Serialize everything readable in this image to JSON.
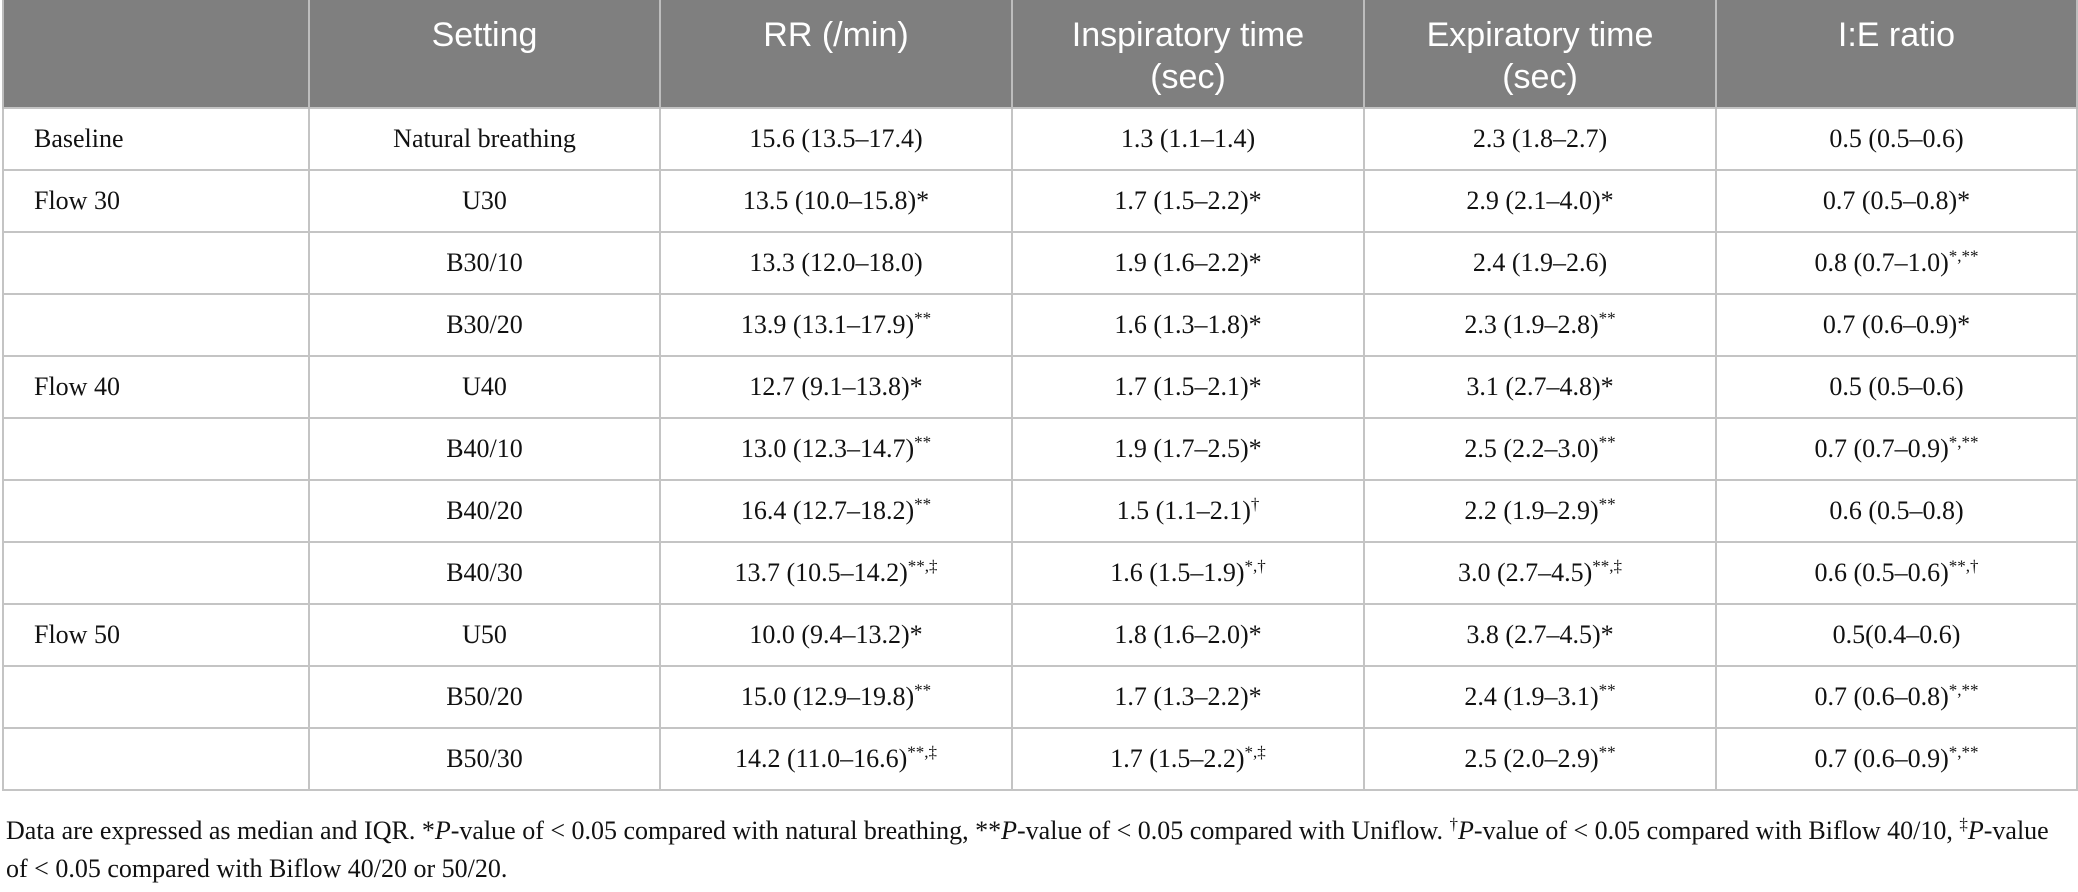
{
  "table": {
    "headers": [
      "",
      "Setting",
      "RR (/min)",
      "Inspiratory time\n(sec)",
      "Expiratory time\n(sec)",
      "I:E ratio"
    ],
    "rows": [
      {
        "group": "Baseline",
        "setting": "Natural breathing",
        "rr": {
          "v": "15.6 (13.5–17.4)",
          "s": ""
        },
        "insp": {
          "v": "1.3 (1.1–1.4)",
          "s": ""
        },
        "exp": {
          "v": "2.3 (1.8–2.7)",
          "s": ""
        },
        "ie": {
          "v": "0.5 (0.5–0.6)",
          "s": ""
        }
      },
      {
        "group": "Flow 30",
        "setting": "U30",
        "rr": {
          "v": "13.5 (10.0–15.8)*",
          "s": ""
        },
        "insp": {
          "v": "1.7 (1.5–2.2)*",
          "s": ""
        },
        "exp": {
          "v": "2.9 (2.1–4.0)*",
          "s": ""
        },
        "ie": {
          "v": "0.7 (0.5–0.8)*",
          "s": ""
        }
      },
      {
        "group": "",
        "setting": "B30/10",
        "rr": {
          "v": "13.3 (12.0–18.0)",
          "s": ""
        },
        "insp": {
          "v": "1.9 (1.6–2.2)*",
          "s": ""
        },
        "exp": {
          "v": "2.4 (1.9–2.6)",
          "s": ""
        },
        "ie": {
          "v": "0.8 (0.7–1.0)",
          "s": "*,**"
        }
      },
      {
        "group": "",
        "setting": "B30/20",
        "rr": {
          "v": "13.9 (13.1–17.9)",
          "s": "**"
        },
        "insp": {
          "v": "1.6 (1.3–1.8)*",
          "s": ""
        },
        "exp": {
          "v": "2.3 (1.9–2.8)",
          "s": "**"
        },
        "ie": {
          "v": "0.7 (0.6–0.9)*",
          "s": ""
        }
      },
      {
        "group": "Flow 40",
        "setting": "U40",
        "rr": {
          "v": "12.7 (9.1–13.8)*",
          "s": ""
        },
        "insp": {
          "v": "1.7 (1.5–2.1)*",
          "s": ""
        },
        "exp": {
          "v": "3.1 (2.7–4.8)*",
          "s": ""
        },
        "ie": {
          "v": "0.5 (0.5–0.6)",
          "s": ""
        }
      },
      {
        "group": "",
        "setting": "B40/10",
        "rr": {
          "v": "13.0 (12.3–14.7)",
          "s": "**"
        },
        "insp": {
          "v": "1.9 (1.7–2.5)*",
          "s": ""
        },
        "exp": {
          "v": "2.5 (2.2–3.0)",
          "s": "**"
        },
        "ie": {
          "v": "0.7 (0.7–0.9)",
          "s": "*,**"
        }
      },
      {
        "group": "",
        "setting": "B40/20",
        "rr": {
          "v": "16.4 (12.7–18.2)",
          "s": "**"
        },
        "insp": {
          "v": "1.5 (1.1–2.1)",
          "s": "†"
        },
        "exp": {
          "v": "2.2 (1.9–2.9)",
          "s": "**"
        },
        "ie": {
          "v": "0.6 (0.5–0.8)",
          "s": ""
        }
      },
      {
        "group": "",
        "setting": "B40/30",
        "rr": {
          "v": "13.7 (10.5–14.2)",
          "s": "**,‡"
        },
        "insp": {
          "v": "1.6 (1.5–1.9)",
          "s": "*,†"
        },
        "exp": {
          "v": "3.0 (2.7–4.5)",
          "s": "**,‡"
        },
        "ie": {
          "v": "0.6 (0.5–0.6)",
          "s": "**,†"
        }
      },
      {
        "group": "Flow 50",
        "setting": "U50",
        "rr": {
          "v": "10.0 (9.4–13.2)*",
          "s": ""
        },
        "insp": {
          "v": "1.8 (1.6–2.0)*",
          "s": ""
        },
        "exp": {
          "v": "3.8 (2.7–4.5)*",
          "s": ""
        },
        "ie": {
          "v": "0.5(0.4–0.6)",
          "s": ""
        }
      },
      {
        "group": "",
        "setting": "B50/20",
        "rr": {
          "v": "15.0 (12.9–19.8)",
          "s": "**"
        },
        "insp": {
          "v": "1.7 (1.3–2.2)*",
          "s": ""
        },
        "exp": {
          "v": "2.4 (1.9–3.1)",
          "s": "**"
        },
        "ie": {
          "v": "0.7 (0.6–0.8)",
          "s": "*,**"
        }
      },
      {
        "group": "",
        "setting": "B50/30",
        "rr": {
          "v": "14.2 (11.0–16.6)",
          "s": "**,‡"
        },
        "insp": {
          "v": "1.7 (1.5–2.2)",
          "s": "*,‡"
        },
        "exp": {
          "v": "2.5 (2.0–2.9)",
          "s": "**"
        },
        "ie": {
          "v": "0.7 (0.6–0.9)",
          "s": "*,**"
        }
      }
    ]
  },
  "footnote": {
    "parts": [
      {
        "t": "Data are expressed as median and IQR. *"
      },
      {
        "t": "P",
        "i": true
      },
      {
        "t": "-value of < 0.05 compared with natural breathing, **"
      },
      {
        "t": "P",
        "i": true
      },
      {
        "t": "-value of < 0.05 compared with Uniflow. "
      },
      {
        "t": "†",
        "sup": true
      },
      {
        "t": "P",
        "i": true
      },
      {
        "t": "-value of < 0.05 compared with Biflow 40/10, "
      },
      {
        "t": "‡",
        "sup": true
      },
      {
        "t": "P",
        "i": true
      },
      {
        "t": "-value of < 0.05 compared with Biflow 40/20 or 50/20."
      }
    ]
  }
}
